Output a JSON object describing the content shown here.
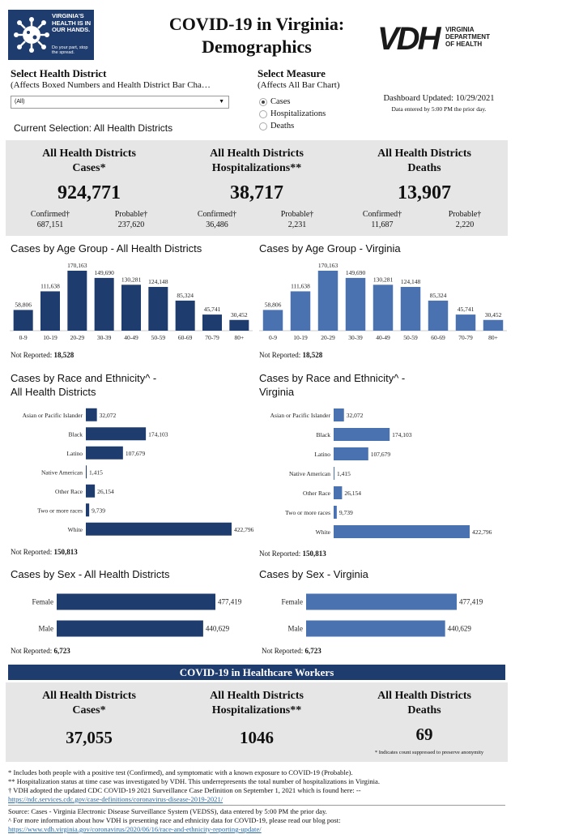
{
  "header": {
    "logo_text": "VIRGINIA'S HEALTH IS IN OUR HANDS.",
    "logo_sub": "Do your part, stop the spread.",
    "title_line1": "COVID-19 in Virginia:",
    "title_line2": "Demographics",
    "vdh_mark": "VDH",
    "vdh_line1": "VIRGINIA",
    "vdh_line2": "DEPARTMENT",
    "vdh_line3": "OF HEALTH"
  },
  "controls": {
    "district_title": "Select Health District",
    "district_sub": "(Affects Boxed Numbers and Health District Bar Cha…",
    "district_value": "(All)",
    "measure_title": "Select Measure",
    "measure_sub": "(Affects All Bar Chart)",
    "measure_options": [
      {
        "label": "Cases",
        "selected": true
      },
      {
        "label": "Hospitalizations",
        "selected": false
      },
      {
        "label": "Deaths",
        "selected": false
      }
    ],
    "updated": "Dashboard Updated: 10/29/2021",
    "entered": "Data entered by 5:00 PM the prior day.",
    "current_selection": "Current Selection: All Health Districts"
  },
  "stats": [
    {
      "heading1": "All Health Districts",
      "heading2": "Cases*",
      "value": "924,771",
      "confirmed_label": "Confirmed†",
      "confirmed": "687,151",
      "probable_label": "Probable†",
      "probable": "237,620"
    },
    {
      "heading1": "All Health Districts",
      "heading2": "Hospitalizations**",
      "value": "38,717",
      "confirmed_label": "Confirmed†",
      "confirmed": "36,486",
      "probable_label": "Probable†",
      "probable": "2,231"
    },
    {
      "heading1": "All Health Districts",
      "heading2": "Deaths",
      "value": "13,907",
      "confirmed_label": "Confirmed†",
      "confirmed": "11,687",
      "probable_label": "Probable†",
      "probable": "2,220"
    }
  ],
  "sections": {
    "age_district": "Cases by Age Group - All Health Districts",
    "age_va": "Cases by Age Group - Virginia",
    "race_district_1": "Cases by Race and Ethnicity^ -",
    "race_district_2": "All Health Districts",
    "race_va_1": "Cases by Race and Ethnicity^ -",
    "race_va_2": "Virginia",
    "sex_district": "Cases by Sex - All Health Districts",
    "sex_va": "Cases by Sex - Virginia",
    "not_reported_label": "Not Reported:",
    "age_not_reported": "18,528",
    "race_not_reported": "150,813",
    "sex_not_reported": "6,723"
  },
  "chart_data": [
    {
      "type": "bar",
      "title": "Cases by Age Group - All Health Districts",
      "categories": [
        "0-9",
        "10-19",
        "20-29",
        "30-39",
        "40-49",
        "50-59",
        "60-69",
        "70-79",
        "80+"
      ],
      "values": [
        58806,
        111638,
        170163,
        149690,
        130281,
        124148,
        85324,
        45741,
        30452
      ],
      "labels": [
        "58,806",
        "111,638",
        "170,163",
        "149,690",
        "130,281",
        "124,148",
        "85,324",
        "45,741",
        "30,452"
      ],
      "color": "#1f3c6e"
    },
    {
      "type": "bar",
      "title": "Cases by Age Group - Virginia",
      "categories": [
        "0-9",
        "10-19",
        "20-29",
        "30-39",
        "40-49",
        "50-59",
        "60-69",
        "70-79",
        "80+"
      ],
      "values": [
        58806,
        111638,
        170163,
        149690,
        130281,
        124148,
        85324,
        45741,
        30452
      ],
      "labels": [
        "58,806",
        "111,638",
        "170,163",
        "149,690",
        "130,281",
        "124,148",
        "85,324",
        "45,741",
        "30,452"
      ],
      "color": "#4a72b0"
    },
    {
      "type": "bar",
      "orientation": "horizontal",
      "title": "Cases by Race and Ethnicity^ - All Health Districts",
      "categories": [
        "Asian or Pacific Islander",
        "Black",
        "Latino",
        "Native American",
        "Other Race",
        "Two or more races",
        "White"
      ],
      "values": [
        32072,
        174103,
        107679,
        1415,
        26154,
        9739,
        422796
      ],
      "labels": [
        "32,072",
        "174,103",
        "107,679",
        "1,415",
        "26,154",
        "9,739",
        "422,796"
      ],
      "color": "#1f3c6e"
    },
    {
      "type": "bar",
      "orientation": "horizontal",
      "title": "Cases by Race and Ethnicity^ - Virginia",
      "categories": [
        "Asian or Pacific Islander",
        "Black",
        "Latino",
        "Native American",
        "Other Race",
        "Two or more races",
        "White"
      ],
      "values": [
        32072,
        174103,
        107679,
        1415,
        26154,
        9739,
        422796
      ],
      "labels": [
        "32,072",
        "174,103",
        "107,679",
        "1,415",
        "26,154",
        "9,739",
        "422,796"
      ],
      "color": "#4a72b0"
    },
    {
      "type": "bar",
      "orientation": "horizontal",
      "title": "Cases by Sex - All Health Districts",
      "categories": [
        "Female",
        "Male"
      ],
      "values": [
        477419,
        440629
      ],
      "labels": [
        "477,419",
        "440,629"
      ],
      "color": "#1f3c6e"
    },
    {
      "type": "bar",
      "orientation": "horizontal",
      "title": "Cases by Sex - Virginia",
      "categories": [
        "Female",
        "Male"
      ],
      "values": [
        477419,
        440629
      ],
      "labels": [
        "477,419",
        "440,629"
      ],
      "color": "#4a72b0"
    }
  ],
  "healthcare": {
    "banner": "COVID-19 in Healthcare Workers",
    "stats": [
      {
        "heading1": "All Health Districts",
        "heading2": "Cases*",
        "value": "37,055"
      },
      {
        "heading1": "All Health Districts",
        "heading2": "Hospitalizations**",
        "value": "1046"
      },
      {
        "heading1": "All Health Districts",
        "heading2": "Deaths",
        "value": "69"
      }
    ],
    "suppressed_note": "* Indicates count suppressed to preserve anonymity"
  },
  "footnotes": {
    "f1": "* Includes both people with a positive test (Confirmed), and symptomatic with a known exposure to COVID-19 (Probable).",
    "f2": "** Hospitalization status at time case was investigated by VDH. This underrepresents the total number of hospitalizations in Virginia.",
    "f3": "† VDH adopted the updated CDC COVID-19 2021 Surveillance Case Definition on September 1, 2021 which is found here: --",
    "f3_link": "https://ndc.services.cdc.gov/case-definitions/coronavirus-disease-2019-2021/",
    "f4": "Source:  Cases - Virginia Electronic Disease Surveillance System (VEDSS), data entered by 5:00 PM the prior day.",
    "f5": "^ For more information about how VDH is presenting race and ethnicity data for COVID-19, please read our blog post:",
    "f5_link": "https://www.vdh.virginia.gov/coronavirus/2020/06/16/race-and-ethnicity-reporting-update/"
  }
}
